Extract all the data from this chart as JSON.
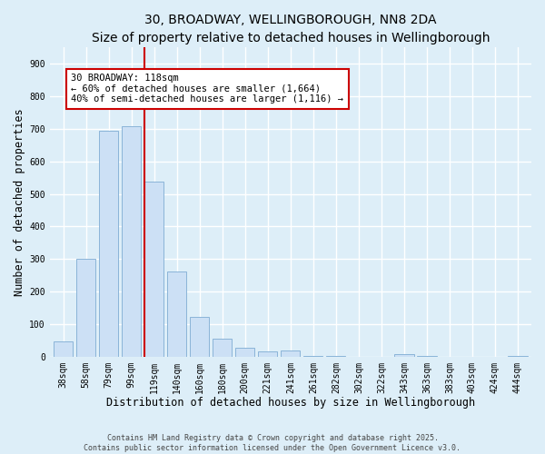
{
  "title": "30, BROADWAY, WELLINGBOROUGH, NN8 2DA",
  "subtitle": "Size of property relative to detached houses in Wellingborough",
  "xlabel": "Distribution of detached houses by size in Wellingborough",
  "ylabel": "Number of detached properties",
  "categories": [
    "38sqm",
    "58sqm",
    "79sqm",
    "99sqm",
    "119sqm",
    "140sqm",
    "160sqm",
    "180sqm",
    "200sqm",
    "221sqm",
    "241sqm",
    "261sqm",
    "282sqm",
    "302sqm",
    "322sqm",
    "343sqm",
    "363sqm",
    "383sqm",
    "403sqm",
    "424sqm",
    "444sqm"
  ],
  "values": [
    47,
    300,
    693,
    707,
    537,
    263,
    122,
    54,
    28,
    15,
    18,
    2,
    1,
    0,
    0,
    8,
    1,
    0,
    0,
    0,
    1
  ],
  "bar_color": "#cce0f5",
  "bar_edge_color": "#8ab4d8",
  "vline_index": 4,
  "vline_color": "#cc0000",
  "annotation_title": "30 BROADWAY: 118sqm",
  "annotation_line1": "← 60% of detached houses are smaller (1,664)",
  "annotation_line2": "40% of semi-detached houses are larger (1,116) →",
  "annotation_box_facecolor": "#ffffff",
  "annotation_box_edgecolor": "#cc0000",
  "ylim": [
    0,
    950
  ],
  "yticks": [
    0,
    100,
    200,
    300,
    400,
    500,
    600,
    700,
    800,
    900
  ],
  "footer_line1": "Contains HM Land Registry data © Crown copyright and database right 2025.",
  "footer_line2": "Contains public sector information licensed under the Open Government Licence v3.0.",
  "background_color": "#ddeef8",
  "plot_background_color": "#ddeef8",
  "grid_color": "#ffffff",
  "title_fontsize": 10,
  "subtitle_fontsize": 9,
  "axis_label_fontsize": 8.5,
  "tick_fontsize": 7,
  "annotation_fontsize": 7.5,
  "footer_fontsize": 6
}
